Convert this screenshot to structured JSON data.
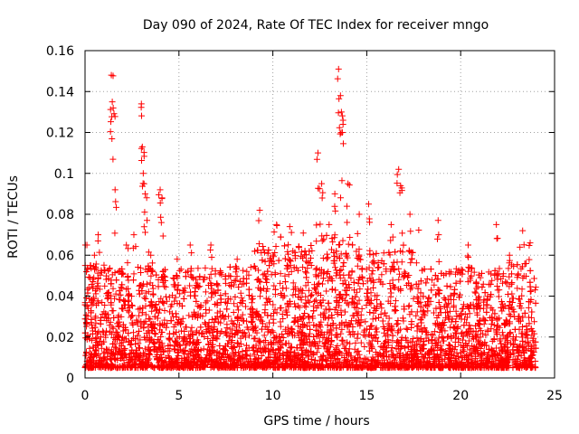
{
  "chart_data": {
    "type": "scatter",
    "title": "Day 090 of 2024, Rate Of TEC Index for receiver mngo",
    "xlabel": "GPS time / hours",
    "ylabel": "ROTI / TECUs",
    "xlim": [
      0,
      25
    ],
    "ylim": [
      0,
      0.16
    ],
    "xticks": [
      0,
      5,
      10,
      15,
      20,
      25
    ],
    "xtick_labels": [
      "0",
      "5",
      "10",
      "15",
      "20",
      "25"
    ],
    "yticks": [
      0,
      0.02,
      0.04,
      0.06,
      0.08,
      0.1,
      0.12,
      0.14,
      0.16
    ],
    "ytick_labels": [
      "0",
      "0.02",
      "0.04",
      "0.06",
      "0.08",
      "0.1",
      "0.12",
      "0.14",
      "0.16"
    ],
    "grid": true,
    "marker": "+",
    "color": "#ff0000",
    "series": [
      {
        "name": "ROTI",
        "x": [
          0.1,
          0.3,
          0.5,
          0.7,
          1.4,
          1.45,
          1.5,
          1.6,
          2.2,
          2.6,
          3.0,
          3.05,
          3.1,
          3.2,
          3.3,
          3.5,
          4.0,
          4.1,
          5.6,
          6.7,
          8.1,
          9.3,
          10.2,
          10.9,
          12.4,
          12.6,
          13.3,
          13.5,
          13.6,
          13.65,
          13.7,
          14.0,
          14.6,
          15.1,
          16.3,
          16.7,
          16.8,
          17.3,
          18.8,
          20.4,
          21.9,
          22.6,
          23.3,
          23.7
        ],
        "y": [
          0.065,
          0.055,
          0.06,
          0.07,
          0.148,
          0.135,
          0.132,
          0.092,
          0.065,
          0.07,
          0.134,
          0.113,
          0.1,
          0.09,
          0.077,
          0.06,
          0.092,
          0.088,
          0.065,
          0.065,
          0.058,
          0.082,
          0.075,
          0.074,
          0.11,
          0.095,
          0.09,
          0.151,
          0.138,
          0.13,
          0.12,
          0.095,
          0.08,
          0.085,
          0.075,
          0.102,
          0.094,
          0.08,
          0.077,
          0.065,
          0.075,
          0.06,
          0.072,
          0.066
        ]
      }
    ],
    "background_bands": [
      {
        "x_from": 0.0,
        "x_to": 24.0,
        "y_min": 0.004,
        "y_max": 0.03,
        "density": "very high"
      },
      {
        "x_from": 0.0,
        "x_to": 24.0,
        "y_min": 0.01,
        "y_max": 0.045,
        "density": "high"
      },
      {
        "x_from": 9.0,
        "x_to": 18.0,
        "y_min": 0.01,
        "y_max": 0.06,
        "density": "high"
      }
    ]
  }
}
